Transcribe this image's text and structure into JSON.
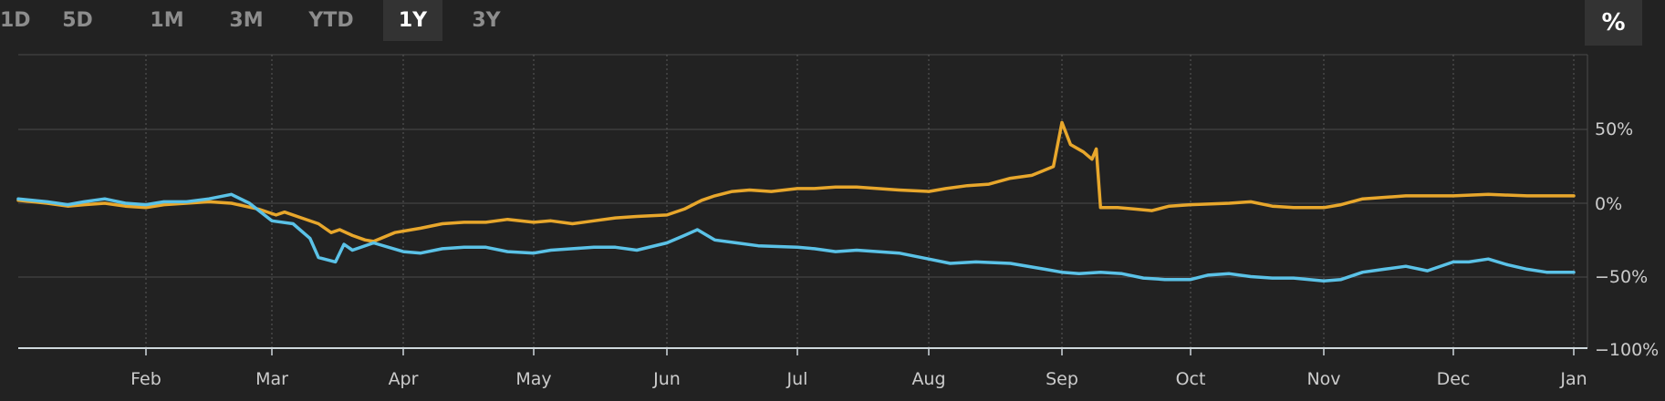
{
  "range_tabs": {
    "items": [
      {
        "label": "1D",
        "active": false
      },
      {
        "label": "5D",
        "active": false
      },
      {
        "label": "1M",
        "active": false
      },
      {
        "label": "3M",
        "active": false
      },
      {
        "label": "YTD",
        "active": false
      },
      {
        "label": "1Y",
        "active": true
      },
      {
        "label": "3Y",
        "active": false
      }
    ]
  },
  "percent_toggle": {
    "label": "%"
  },
  "colors": {
    "background": "#222222",
    "gold_series": "#e8a72c",
    "blue_series": "#5bc2e7",
    "grid": "#4a4a4a",
    "axis": "#cfd8dc"
  },
  "chart_data": {
    "type": "line",
    "title": "",
    "xlabel": "",
    "ylabel": "",
    "x_ticks": [
      "Feb",
      "Mar",
      "Apr",
      "May",
      "Jun",
      "Jul",
      "Aug",
      "Sep",
      "Oct",
      "Nov",
      "Dec",
      "Jan"
    ],
    "y_ticks": [
      "50%",
      "0%",
      "-50%",
      "-100%"
    ],
    "ylim": [
      -100,
      100
    ],
    "y_unit": "%",
    "grid": {
      "horizontal": true,
      "vertical": "dotted"
    },
    "series": [
      {
        "color": "#e8a72c",
        "points": [
          [
            "Jan-01",
            2
          ],
          [
            "Jan-08",
            0
          ],
          [
            "Jan-13",
            -2
          ],
          [
            "Jan-17",
            -1
          ],
          [
            "Jan-22",
            0
          ],
          [
            "Jan-27",
            -2
          ],
          [
            "Feb-01",
            -3
          ],
          [
            "Feb-05",
            -1
          ],
          [
            "Feb-10",
            0
          ],
          [
            "Feb-15",
            1
          ],
          [
            "Feb-20",
            0
          ],
          [
            "Feb-26",
            -4
          ],
          [
            "Mar-02",
            -8
          ],
          [
            "Mar-04",
            -6
          ],
          [
            "Mar-08",
            -10
          ],
          [
            "Mar-12",
            -14
          ],
          [
            "Mar-15",
            -20
          ],
          [
            "Mar-17",
            -18
          ],
          [
            "Mar-20",
            -22
          ],
          [
            "Mar-23",
            -25
          ],
          [
            "Mar-25",
            -26
          ],
          [
            "Mar-30",
            -20
          ],
          [
            "Apr-05",
            -17
          ],
          [
            "Apr-10",
            -14
          ],
          [
            "Apr-15",
            -13
          ],
          [
            "Apr-20",
            -13
          ],
          [
            "Apr-25",
            -11
          ],
          [
            "May-01",
            -13
          ],
          [
            "May-05",
            -12
          ],
          [
            "May-10",
            -14
          ],
          [
            "May-15",
            -12
          ],
          [
            "May-20",
            -10
          ],
          [
            "May-25",
            -9
          ],
          [
            "Jun-01",
            -8
          ],
          [
            "Jun-05",
            -4
          ],
          [
            "Jun-09",
            2
          ],
          [
            "Jun-12",
            5
          ],
          [
            "Jun-16",
            8
          ],
          [
            "Jun-20",
            9
          ],
          [
            "Jun-25",
            8
          ],
          [
            "Jul-01",
            10
          ],
          [
            "Jul-05",
            10
          ],
          [
            "Jul-10",
            11
          ],
          [
            "Jul-15",
            11
          ],
          [
            "Jul-20",
            10
          ],
          [
            "Jul-25",
            9
          ],
          [
            "Aug-01",
            8
          ],
          [
            "Aug-05",
            10
          ],
          [
            "Aug-10",
            12
          ],
          [
            "Aug-15",
            13
          ],
          [
            "Aug-20",
            17
          ],
          [
            "Aug-25",
            19
          ],
          [
            "Aug-30",
            25
          ],
          [
            "Sep-01",
            55
          ],
          [
            "Sep-03",
            40
          ],
          [
            "Sep-06",
            35
          ],
          [
            "Sep-08",
            30
          ],
          [
            "Sep-09",
            37
          ],
          [
            "Sep-10",
            -3
          ],
          [
            "Sep-14",
            -3
          ],
          [
            "Sep-18",
            -4
          ],
          [
            "Sep-22",
            -5
          ],
          [
            "Sep-26",
            -2
          ],
          [
            "Oct-01",
            -1
          ],
          [
            "Oct-10",
            0
          ],
          [
            "Oct-15",
            1
          ],
          [
            "Oct-20",
            -2
          ],
          [
            "Oct-25",
            -3
          ],
          [
            "Nov-01",
            -3
          ],
          [
            "Nov-05",
            -1
          ],
          [
            "Nov-10",
            3
          ],
          [
            "Nov-20",
            5
          ],
          [
            "Dec-01",
            5
          ],
          [
            "Dec-10",
            6
          ],
          [
            "Dec-20",
            5
          ],
          [
            "Jan-01",
            5
          ]
        ]
      },
      {
        "color": "#5bc2e7",
        "points": [
          [
            "Jan-01",
            3
          ],
          [
            "Jan-08",
            1
          ],
          [
            "Jan-13",
            -1
          ],
          [
            "Jan-17",
            1
          ],
          [
            "Jan-22",
            3
          ],
          [
            "Jan-27",
            0
          ],
          [
            "Feb-01",
            -1
          ],
          [
            "Feb-05",
            1
          ],
          [
            "Feb-10",
            1
          ],
          [
            "Feb-15",
            3
          ],
          [
            "Feb-20",
            6
          ],
          [
            "Feb-24",
            0
          ],
          [
            "Mar-01",
            -12
          ],
          [
            "Mar-06",
            -14
          ],
          [
            "Mar-10",
            -24
          ],
          [
            "Mar-12",
            -37
          ],
          [
            "Mar-16",
            -40
          ],
          [
            "Mar-18",
            -28
          ],
          [
            "Mar-20",
            -32
          ],
          [
            "Mar-25",
            -27
          ],
          [
            "Apr-01",
            -33
          ],
          [
            "Apr-05",
            -34
          ],
          [
            "Apr-10",
            -31
          ],
          [
            "Apr-15",
            -30
          ],
          [
            "Apr-20",
            -30
          ],
          [
            "Apr-25",
            -33
          ],
          [
            "May-01",
            -34
          ],
          [
            "May-05",
            -32
          ],
          [
            "May-10",
            -31
          ],
          [
            "May-15",
            -30
          ],
          [
            "May-20",
            -30
          ],
          [
            "May-25",
            -32
          ],
          [
            "Jun-01",
            -27
          ],
          [
            "Jun-05",
            -22
          ],
          [
            "Jun-08",
            -18
          ],
          [
            "Jun-12",
            -25
          ],
          [
            "Jun-17",
            -27
          ],
          [
            "Jun-22",
            -29
          ],
          [
            "Jul-01",
            -30
          ],
          [
            "Jul-05",
            -31
          ],
          [
            "Jul-10",
            -33
          ],
          [
            "Jul-15",
            -32
          ],
          [
            "Jul-20",
            -33
          ],
          [
            "Jul-25",
            -34
          ],
          [
            "Aug-01",
            -38
          ],
          [
            "Aug-06",
            -41
          ],
          [
            "Aug-12",
            -40
          ],
          [
            "Aug-20",
            -41
          ],
          [
            "Aug-28",
            -45
          ],
          [
            "Sep-01",
            -47
          ],
          [
            "Sep-05",
            -48
          ],
          [
            "Sep-10",
            -47
          ],
          [
            "Sep-15",
            -48
          ],
          [
            "Sep-20",
            -51
          ],
          [
            "Sep-25",
            -52
          ],
          [
            "Oct-01",
            -52
          ],
          [
            "Oct-05",
            -49
          ],
          [
            "Oct-10",
            -48
          ],
          [
            "Oct-15",
            -50
          ],
          [
            "Oct-20",
            -51
          ],
          [
            "Oct-25",
            -51
          ],
          [
            "Nov-01",
            -53
          ],
          [
            "Nov-05",
            -52
          ],
          [
            "Nov-10",
            -47
          ],
          [
            "Nov-15",
            -45
          ],
          [
            "Nov-20",
            -43
          ],
          [
            "Nov-25",
            -46
          ],
          [
            "Dec-01",
            -40
          ],
          [
            "Dec-05",
            -40
          ],
          [
            "Dec-10",
            -38
          ],
          [
            "Dec-15",
            -42
          ],
          [
            "Dec-20",
            -45
          ],
          [
            "Dec-25",
            -47
          ],
          [
            "Jan-01",
            -47
          ]
        ]
      }
    ]
  }
}
